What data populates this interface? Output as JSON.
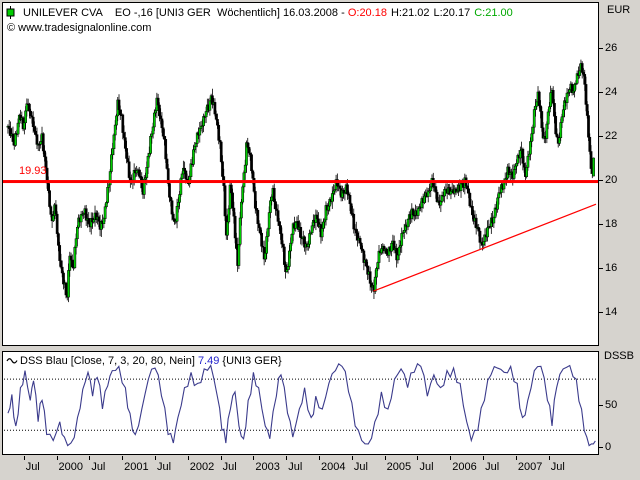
{
  "header": {
    "symbol": "UNILEVER CVA",
    "info": "EO -,16 [UNI3 GER  Wöchentlich] 16.03.2008 - ",
    "open": "O:20.18",
    "high": "H:21.02",
    "low": "L:20.17",
    "close": "C:21.00"
  },
  "copyright": "© www.tradesignalonline.com",
  "unit_top_right": "EUR",
  "unit_bottom_right": "DSSB",
  "indicator_header": {
    "name_params": "DSS Blau [Close, 7, 3, 20, 80, Nein] ",
    "value": "7.49",
    "context": " {UNI3 GER}"
  },
  "colors": {
    "background": "#d6d3ce",
    "panel": "#ffffff",
    "up_candle": "#00cc00",
    "down_candle": "#000000",
    "wick": "#000000",
    "red_line": "#ff0000",
    "open_text": "#ff0000",
    "close_text": "#00a800",
    "indicator_value_text": "#2222cc",
    "dss_line": "#3b3b8c"
  },
  "chart_data": [
    {
      "type": "candlestick",
      "title": "UNILEVER CVA weekly price",
      "unit": "EUR",
      "x_range": [
        1999.2,
        2008.22
      ],
      "ylim": [
        12.5,
        26.9
      ],
      "y_ticks": [
        26,
        24,
        22,
        20,
        18,
        16,
        14
      ],
      "grid": false,
      "horizontal_line": {
        "price": 19.93,
        "label": "19.93",
        "color": "#ff0000"
      },
      "trend_line": {
        "from": {
          "t": 2004.83,
          "price": 14.95
        },
        "to": {
          "t": 2008.22,
          "price": 18.9
        },
        "color": "#ff0000"
      },
      "last_candle": {
        "open": 20.18,
        "high": 21.02,
        "low": 20.17,
        "close": 21.0
      },
      "closes": [
        [
          1999.26,
          22.4
        ],
        [
          1999.35,
          21.6
        ],
        [
          1999.44,
          22.9
        ],
        [
          1999.5,
          22.3
        ],
        [
          1999.55,
          23.7
        ],
        [
          1999.63,
          22.6
        ],
        [
          1999.72,
          21.6
        ],
        [
          1999.78,
          21.9
        ],
        [
          1999.85,
          20.2
        ],
        [
          1999.93,
          18.0
        ],
        [
          1999.98,
          18.9
        ],
        [
          2000.02,
          17.2
        ],
        [
          2000.08,
          15.8
        ],
        [
          2000.16,
          14.5
        ],
        [
          2000.2,
          16.8
        ],
        [
          2000.25,
          15.9
        ],
        [
          2000.33,
          18.2
        ],
        [
          2000.42,
          18.6
        ],
        [
          2000.49,
          17.9
        ],
        [
          2000.58,
          18.4
        ],
        [
          2000.66,
          17.9
        ],
        [
          2000.72,
          18.3
        ],
        [
          2000.8,
          19.8
        ],
        [
          2000.87,
          22.0
        ],
        [
          2000.93,
          23.4
        ],
        [
          2000.99,
          22.8
        ],
        [
          2001.07,
          21.0
        ],
        [
          2001.13,
          19.7
        ],
        [
          2001.21,
          20.6
        ],
        [
          2001.27,
          20.2
        ],
        [
          2001.31,
          19.3
        ],
        [
          2001.39,
          21.0
        ],
        [
          2001.47,
          22.4
        ],
        [
          2001.53,
          23.8
        ],
        [
          2001.59,
          22.6
        ],
        [
          2001.65,
          21.6
        ],
        [
          2001.71,
          19.6
        ],
        [
          2001.79,
          17.8
        ],
        [
          2001.85,
          18.9
        ],
        [
          2001.92,
          20.6
        ],
        [
          2002.0,
          19.8
        ],
        [
          2002.07,
          21.0
        ],
        [
          2002.17,
          22.3
        ],
        [
          2002.26,
          22.9
        ],
        [
          2002.32,
          23.4
        ],
        [
          2002.36,
          23.9
        ],
        [
          2002.42,
          23.0
        ],
        [
          2002.49,
          21.6
        ],
        [
          2002.55,
          19.6
        ],
        [
          2002.59,
          17.2
        ],
        [
          2002.65,
          19.9
        ],
        [
          2002.71,
          18.0
        ],
        [
          2002.76,
          16.1
        ],
        [
          2002.82,
          19.2
        ],
        [
          2002.9,
          21.7
        ],
        [
          2002.96,
          20.8
        ],
        [
          2003.03,
          18.9
        ],
        [
          2003.11,
          17.3
        ],
        [
          2003.17,
          16.4
        ],
        [
          2003.23,
          18.2
        ],
        [
          2003.29,
          19.5
        ],
        [
          2003.37,
          18.4
        ],
        [
          2003.44,
          17.0
        ],
        [
          2003.5,
          15.6
        ],
        [
          2003.58,
          17.5
        ],
        [
          2003.66,
          18.2
        ],
        [
          2003.73,
          17.4
        ],
        [
          2003.81,
          16.9
        ],
        [
          2003.88,
          17.8
        ],
        [
          2003.96,
          18.3
        ],
        [
          2004.04,
          17.6
        ],
        [
          2004.11,
          18.6
        ],
        [
          2004.19,
          19.3
        ],
        [
          2004.27,
          19.9
        ],
        [
          2004.34,
          19.4
        ],
        [
          2004.42,
          19.6
        ],
        [
          2004.49,
          18.6
        ],
        [
          2004.57,
          17.4
        ],
        [
          2004.65,
          16.9
        ],
        [
          2004.72,
          16.1
        ],
        [
          2004.78,
          15.3
        ],
        [
          2004.83,
          15.0
        ],
        [
          2004.9,
          16.5
        ],
        [
          2004.98,
          17.0
        ],
        [
          2005.05,
          16.6
        ],
        [
          2005.13,
          17.2
        ],
        [
          2005.19,
          16.5
        ],
        [
          2005.28,
          17.6
        ],
        [
          2005.37,
          18.3
        ],
        [
          2005.46,
          18.5
        ],
        [
          2005.56,
          18.9
        ],
        [
          2005.65,
          19.4
        ],
        [
          2005.72,
          19.9
        ],
        [
          2005.82,
          19.0
        ],
        [
          2005.91,
          19.4
        ],
        [
          2006.0,
          19.6
        ],
        [
          2006.09,
          19.4
        ],
        [
          2006.16,
          19.8
        ],
        [
          2006.23,
          19.9
        ],
        [
          2006.3,
          18.9
        ],
        [
          2006.38,
          18.0
        ],
        [
          2006.47,
          17.1
        ],
        [
          2006.56,
          17.6
        ],
        [
          2006.65,
          18.3
        ],
        [
          2006.74,
          19.3
        ],
        [
          2006.82,
          20.0
        ],
        [
          2006.88,
          20.4
        ],
        [
          2006.94,
          20.1
        ],
        [
          2007.02,
          21.0
        ],
        [
          2007.08,
          21.3
        ],
        [
          2007.14,
          20.2
        ],
        [
          2007.18,
          21.0
        ],
        [
          2007.24,
          22.0
        ],
        [
          2007.29,
          23.3
        ],
        [
          2007.34,
          24.0
        ],
        [
          2007.4,
          22.2
        ],
        [
          2007.44,
          21.6
        ],
        [
          2007.5,
          23.4
        ],
        [
          2007.55,
          24.2
        ],
        [
          2007.59,
          22.5
        ],
        [
          2007.64,
          21.6
        ],
        [
          2007.7,
          22.9
        ],
        [
          2007.76,
          23.6
        ],
        [
          2007.82,
          24.3
        ],
        [
          2007.88,
          24.0
        ],
        [
          2007.94,
          24.8
        ],
        [
          2008.0,
          25.3
        ],
        [
          2008.05,
          24.2
        ],
        [
          2008.09,
          22.6
        ],
        [
          2008.12,
          21.5
        ],
        [
          2008.15,
          20.3
        ],
        [
          2008.2,
          21.0
        ]
      ],
      "x_ticks": [
        {
          "t": 1999.5,
          "label": "Jul"
        },
        {
          "t": 2000.0,
          "label": "2000"
        },
        {
          "t": 2000.5,
          "label": "Jul"
        },
        {
          "t": 2001.0,
          "label": "2001"
        },
        {
          "t": 2001.5,
          "label": "Jul"
        },
        {
          "t": 2002.0,
          "label": "2002"
        },
        {
          "t": 2002.5,
          "label": "Jul"
        },
        {
          "t": 2003.0,
          "label": "2003"
        },
        {
          "t": 2003.5,
          "label": "Jul"
        },
        {
          "t": 2004.0,
          "label": "2004"
        },
        {
          "t": 2004.5,
          "label": "Jul"
        },
        {
          "t": 2005.0,
          "label": "2005"
        },
        {
          "t": 2005.5,
          "label": "Jul"
        },
        {
          "t": 2006.0,
          "label": "2006"
        },
        {
          "t": 2006.5,
          "label": "Jul"
        },
        {
          "t": 2007.0,
          "label": "2007"
        },
        {
          "t": 2007.5,
          "label": "Jul"
        }
      ]
    },
    {
      "type": "line",
      "title": "DSS Blau oscillator",
      "name": "DSS Blau",
      "params": [
        "Close",
        7,
        3,
        20,
        80,
        "Nein"
      ],
      "last_value": 7.49,
      "x_range": [
        1999.2,
        2008.22
      ],
      "ylim": [
        -6,
        106
      ],
      "y_ticks": [
        50,
        0
      ],
      "bands": [
        20,
        80
      ],
      "values": [
        [
          1999.26,
          40
        ],
        [
          1999.32,
          62
        ],
        [
          1999.38,
          25
        ],
        [
          1999.45,
          70
        ],
        [
          1999.52,
          90
        ],
        [
          1999.6,
          55
        ],
        [
          1999.65,
          78
        ],
        [
          1999.72,
          30
        ],
        [
          1999.78,
          55
        ],
        [
          1999.85,
          15
        ],
        [
          1999.95,
          8
        ],
        [
          2000.05,
          30
        ],
        [
          2000.12,
          12
        ],
        [
          2000.22,
          5
        ],
        [
          2000.32,
          35
        ],
        [
          2000.4,
          68
        ],
        [
          2000.48,
          88
        ],
        [
          2000.55,
          60
        ],
        [
          2000.62,
          82
        ],
        [
          2000.7,
          45
        ],
        [
          2000.78,
          72
        ],
        [
          2000.85,
          90
        ],
        [
          2000.95,
          95
        ],
        [
          2001.05,
          70
        ],
        [
          2001.12,
          40
        ],
        [
          2001.2,
          15
        ],
        [
          2001.3,
          45
        ],
        [
          2001.4,
          80
        ],
        [
          2001.5,
          93
        ],
        [
          2001.6,
          60
        ],
        [
          2001.7,
          15
        ],
        [
          2001.78,
          5
        ],
        [
          2001.85,
          35
        ],
        [
          2001.95,
          70
        ],
        [
          2002.05,
          88
        ],
        [
          2002.15,
          75
        ],
        [
          2002.25,
          92
        ],
        [
          2002.35,
          96
        ],
        [
          2002.45,
          60
        ],
        [
          2002.52,
          20
        ],
        [
          2002.58,
          5
        ],
        [
          2002.65,
          45
        ],
        [
          2002.72,
          65
        ],
        [
          2002.78,
          25
        ],
        [
          2002.85,
          10
        ],
        [
          2002.92,
          55
        ],
        [
          2003.0,
          88
        ],
        [
          2003.08,
          70
        ],
        [
          2003.18,
          25
        ],
        [
          2003.25,
          10
        ],
        [
          2003.35,
          60
        ],
        [
          2003.42,
          85
        ],
        [
          2003.52,
          40
        ],
        [
          2003.6,
          12
        ],
        [
          2003.7,
          45
        ],
        [
          2003.78,
          70
        ],
        [
          2003.88,
          35
        ],
        [
          2003.95,
          60
        ],
        [
          2004.05,
          45
        ],
        [
          2004.15,
          75
        ],
        [
          2004.25,
          90
        ],
        [
          2004.35,
          95
        ],
        [
          2004.45,
          65
        ],
        [
          2004.55,
          25
        ],
        [
          2004.65,
          8
        ],
        [
          2004.75,
          4
        ],
        [
          2004.85,
          30
        ],
        [
          2004.95,
          65
        ],
        [
          2005.05,
          45
        ],
        [
          2005.15,
          80
        ],
        [
          2005.25,
          92
        ],
        [
          2005.35,
          70
        ],
        [
          2005.45,
          88
        ],
        [
          2005.55,
          95
        ],
        [
          2005.65,
          60
        ],
        [
          2005.75,
          85
        ],
        [
          2005.85,
          70
        ],
        [
          2005.95,
          90
        ],
        [
          2006.05,
          93
        ],
        [
          2006.15,
          75
        ],
        [
          2006.25,
          30
        ],
        [
          2006.32,
          8
        ],
        [
          2006.42,
          20
        ],
        [
          2006.52,
          55
        ],
        [
          2006.62,
          85
        ],
        [
          2006.72,
          93
        ],
        [
          2006.82,
          88
        ],
        [
          2006.92,
          95
        ],
        [
          2007.02,
          75
        ],
        [
          2007.1,
          35
        ],
        [
          2007.18,
          55
        ],
        [
          2007.28,
          90
        ],
        [
          2007.38,
          95
        ],
        [
          2007.48,
          55
        ],
        [
          2007.55,
          25
        ],
        [
          2007.62,
          70
        ],
        [
          2007.72,
          92
        ],
        [
          2007.82,
          96
        ],
        [
          2007.92,
          80
        ],
        [
          2008.0,
          45
        ],
        [
          2008.08,
          12
        ],
        [
          2008.15,
          4
        ],
        [
          2008.21,
          7.49
        ]
      ]
    }
  ]
}
